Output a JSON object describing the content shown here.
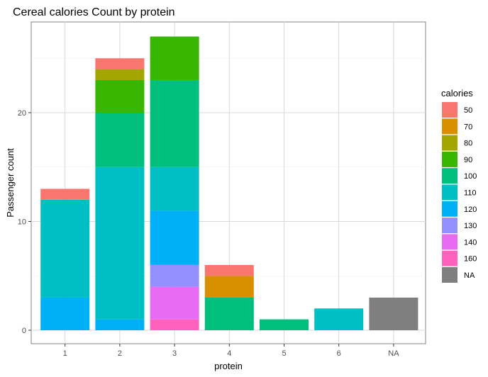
{
  "chart_data": {
    "type": "bar",
    "stacked": true,
    "title": "Cereal calories Count by protein",
    "xlabel": "protein",
    "ylabel": "Passenger count",
    "categories": [
      "1",
      "2",
      "3",
      "4",
      "5",
      "6",
      "NA"
    ],
    "ylim": [
      0,
      28.5
    ],
    "yticks": [
      0,
      10,
      20
    ],
    "grid": true,
    "legend": {
      "title": "calories",
      "position": "right",
      "entries": [
        {
          "label": "50",
          "color": "#F8766D"
        },
        {
          "label": "70",
          "color": "#D89000"
        },
        {
          "label": "80",
          "color": "#A3A500"
        },
        {
          "label": "90",
          "color": "#39B600"
        },
        {
          "label": "100",
          "color": "#00BF7D"
        },
        {
          "label": "110",
          "color": "#00BFC4"
        },
        {
          "label": "120",
          "color": "#00B0F6"
        },
        {
          "label": "130",
          "color": "#9590FF"
        },
        {
          "label": "140",
          "color": "#E76BF3"
        },
        {
          "label": "160",
          "color": "#FF62BC"
        },
        {
          "label": "NA",
          "color": "#7F7F7F"
        }
      ]
    },
    "series": [
      {
        "name": "50",
        "values": [
          1,
          1,
          0,
          1,
          0,
          0,
          0
        ]
      },
      {
        "name": "70",
        "values": [
          0,
          0,
          0,
          2,
          0,
          0,
          0
        ]
      },
      {
        "name": "80",
        "values": [
          0,
          1,
          0,
          0,
          0,
          0,
          0
        ]
      },
      {
        "name": "90",
        "values": [
          0,
          3,
          4,
          0,
          0,
          0,
          0
        ]
      },
      {
        "name": "100",
        "values": [
          0,
          5,
          8,
          3,
          1,
          0,
          0
        ]
      },
      {
        "name": "110",
        "values": [
          9,
          14,
          4,
          0,
          0,
          2,
          0
        ]
      },
      {
        "name": "120",
        "values": [
          3,
          1,
          5,
          0,
          0,
          0,
          0
        ]
      },
      {
        "name": "130",
        "values": [
          0,
          0,
          2,
          0,
          0,
          0,
          0
        ]
      },
      {
        "name": "140",
        "values": [
          0,
          0,
          3,
          0,
          0,
          0,
          0
        ]
      },
      {
        "name": "160",
        "values": [
          0,
          0,
          1,
          0,
          0,
          0,
          0
        ]
      },
      {
        "name": "NA",
        "values": [
          0,
          0,
          0,
          0,
          0,
          0,
          3
        ]
      }
    ]
  }
}
